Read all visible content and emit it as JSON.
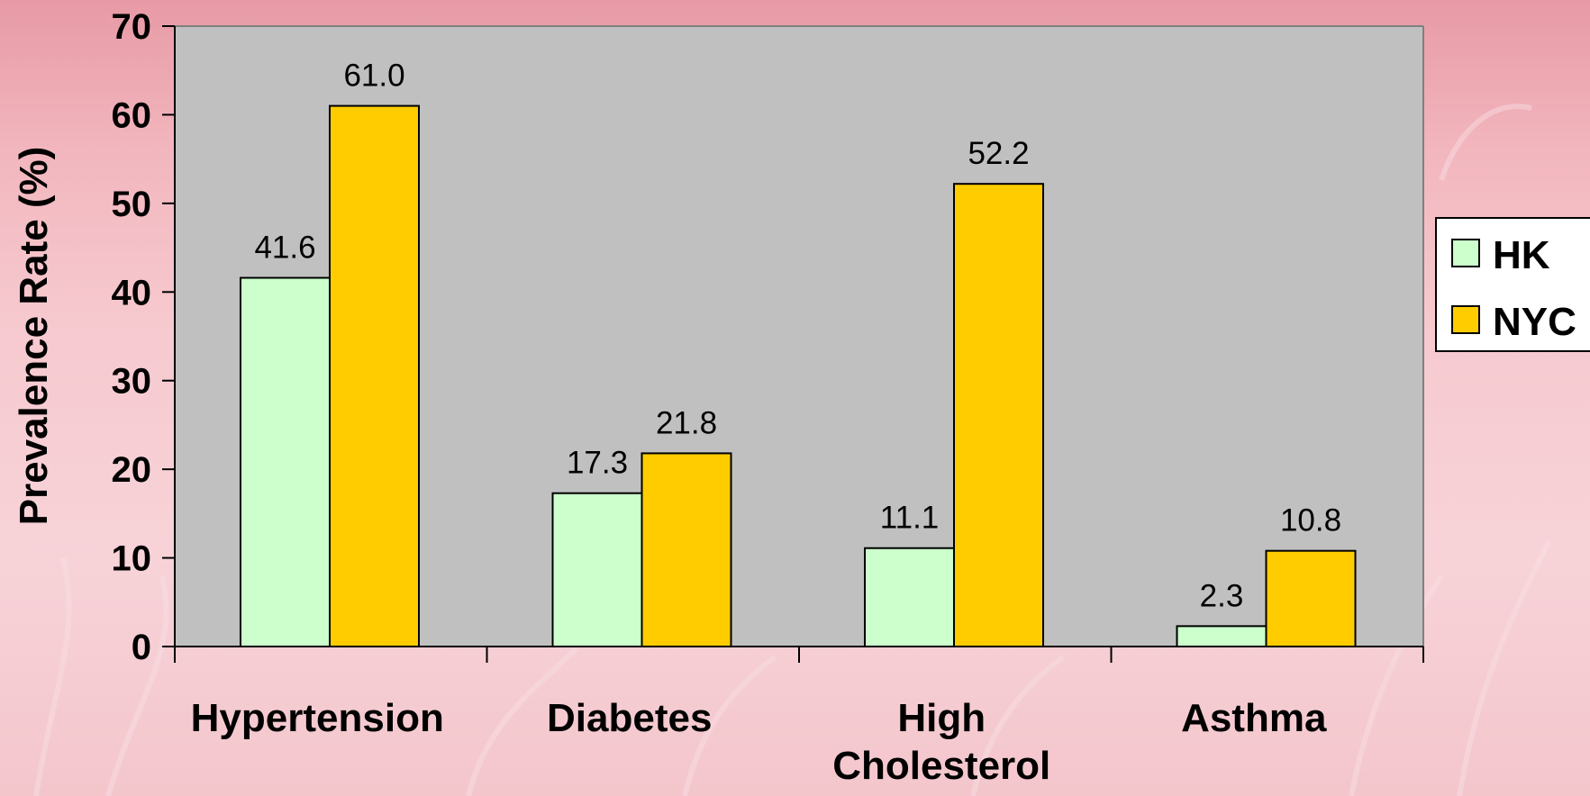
{
  "chart_data": {
    "type": "bar",
    "categories": [
      "Hypertension",
      "Diabetes",
      "High Cholesterol",
      "Asthma"
    ],
    "series": [
      {
        "name": "HK",
        "color": "#ccffcc",
        "values": [
          41.6,
          17.3,
          11.1,
          2.3
        ]
      },
      {
        "name": "NYC",
        "color": "#ffcc00",
        "values": [
          61.0,
          21.8,
          52.2,
          10.8
        ]
      }
    ],
    "data_labels": [
      [
        "41.6",
        "17.3",
        "11.1",
        "2.3"
      ],
      [
        "61.0",
        "21.8",
        "52.2",
        "10.8"
      ]
    ],
    "ylabel": "Prevalence Rate (%)",
    "xlabel": "",
    "title": "",
    "ylim": [
      0,
      70
    ],
    "yticks": [
      0,
      10,
      20,
      30,
      40,
      50,
      60,
      70
    ],
    "plot_background": "#c0c0c0",
    "grid": false,
    "legend_position": "right"
  }
}
